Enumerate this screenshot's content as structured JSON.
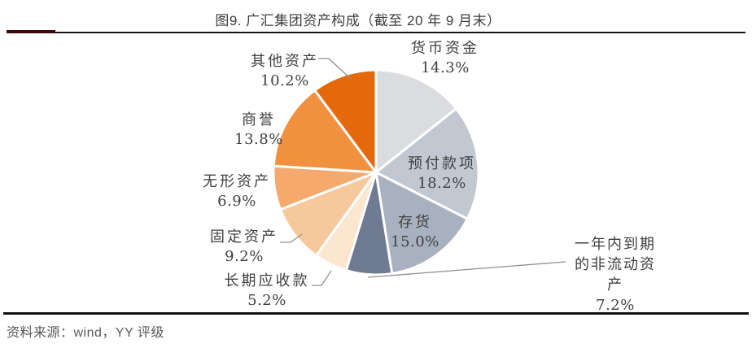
{
  "title": "图9. 广汇集团资产构成（截至 20 年 9 月末）",
  "footer": {
    "source_text": "资料来源：wind，YY 评级"
  },
  "style_colors": {
    "slice_border": "#ffffff",
    "leader_line": "#8f8f8f",
    "label_text": "#3f3f3f",
    "title_text": "#3d3d3d",
    "footer_text": "#595959",
    "rule": "#141414",
    "rule_accent": "#3f0808"
  },
  "chart_data": {
    "type": "pie",
    "title": "广汇集团资产构成（截至 20 年 9 月末）",
    "start_angle_deg": 0,
    "direction": "clockwise",
    "legend": "none",
    "slices": [
      {
        "key": "currency-funds",
        "label": "货币资金",
        "value": 14.3,
        "pct_label": "14.3%",
        "color": "#DBDCE0"
      },
      {
        "key": "prepayments",
        "label": "预付款项",
        "value": 18.2,
        "pct_label": "18.2%",
        "color": "#C2C8D2"
      },
      {
        "key": "inventory",
        "label": "存货",
        "value": 15.0,
        "pct_label": "15.0%",
        "color": "#A8B1C0"
      },
      {
        "key": "non-current-assets-due-within-1-year",
        "label": "一年内到期的非流动资产",
        "value": 7.2,
        "pct_label": "7.2%",
        "color": "#6E7B92"
      },
      {
        "key": "long-term-receivables",
        "label": "长期应收款",
        "value": 5.2,
        "pct_label": "5.2%",
        "color": "#FBE6D0"
      },
      {
        "key": "fixed-assets",
        "label": "固定资产",
        "value": 9.2,
        "pct_label": "9.2%",
        "color": "#F8C89D"
      },
      {
        "key": "intangible-assets",
        "label": "无形资产",
        "value": 6.9,
        "pct_label": "6.9%",
        "color": "#F5A96C"
      },
      {
        "key": "goodwill",
        "label": "商誉",
        "value": 13.8,
        "pct_label": "13.8%",
        "color": "#F1913F"
      },
      {
        "key": "other-assets",
        "label": "其他资产",
        "value": 10.2,
        "pct_label": "10.2%",
        "color": "#E5690A"
      }
    ]
  }
}
